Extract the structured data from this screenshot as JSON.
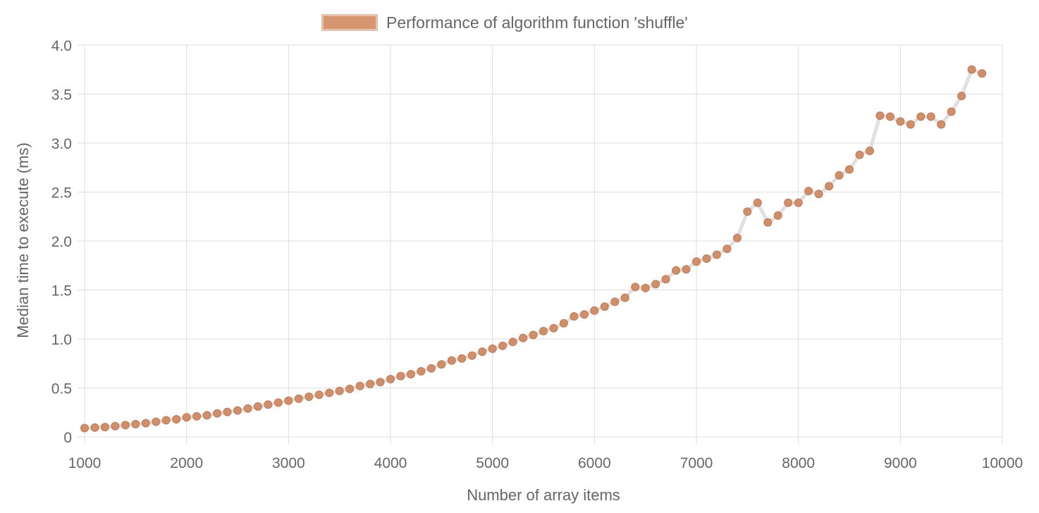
{
  "chart_data": {
    "type": "line",
    "legend": {
      "label": "Performance of algorithm function 'shuffle'",
      "position": "top"
    },
    "xlabel": "Number of array items",
    "ylabel": "Median time to execute (ms)",
    "xlim": [
      1000,
      10000
    ],
    "ylim": [
      0,
      4.0
    ],
    "x_ticks": [
      1000,
      2000,
      3000,
      4000,
      5000,
      6000,
      7000,
      8000,
      9000,
      10000
    ],
    "y_ticks": [
      "0",
      "0.5",
      "1.0",
      "1.5",
      "2.0",
      "2.5",
      "3.0",
      "3.5",
      "4.0"
    ],
    "grid": true,
    "colors": {
      "point": "#d08e6a",
      "point_border": "#c07a55",
      "line": "#e0e0e0",
      "grid": "#dddddd"
    },
    "series": [
      {
        "name": "Performance of algorithm function 'shuffle'",
        "x": [
          1000,
          1100,
          1200,
          1300,
          1400,
          1500,
          1600,
          1700,
          1800,
          1900,
          2000,
          2100,
          2200,
          2300,
          2400,
          2500,
          2600,
          2700,
          2800,
          2900,
          3000,
          3100,
          3200,
          3300,
          3400,
          3500,
          3600,
          3700,
          3800,
          3900,
          4000,
          4100,
          4200,
          4300,
          4400,
          4500,
          4600,
          4700,
          4800,
          4900,
          5000,
          5100,
          5200,
          5300,
          5400,
          5500,
          5600,
          5700,
          5800,
          5900,
          6000,
          6100,
          6200,
          6300,
          6400,
          6500,
          6600,
          6700,
          6800,
          6900,
          7000,
          7100,
          7200,
          7300,
          7400,
          7500,
          7600,
          7700,
          7800,
          7900,
          8000,
          8100,
          8200,
          8300,
          8400,
          8500,
          8600,
          8700,
          8800,
          8900,
          9000,
          9100,
          9200,
          9300,
          9400,
          9500,
          9600,
          9700,
          9800
        ],
        "values": [
          0.09,
          0.095,
          0.1,
          0.11,
          0.12,
          0.13,
          0.14,
          0.155,
          0.17,
          0.18,
          0.2,
          0.21,
          0.22,
          0.24,
          0.255,
          0.27,
          0.29,
          0.31,
          0.33,
          0.35,
          0.37,
          0.39,
          0.41,
          0.43,
          0.45,
          0.47,
          0.49,
          0.52,
          0.54,
          0.56,
          0.59,
          0.62,
          0.64,
          0.67,
          0.7,
          0.74,
          0.78,
          0.8,
          0.83,
          0.87,
          0.9,
          0.93,
          0.97,
          1.01,
          1.04,
          1.08,
          1.11,
          1.16,
          1.23,
          1.25,
          1.29,
          1.33,
          1.38,
          1.42,
          1.53,
          1.52,
          1.56,
          1.61,
          1.7,
          1.71,
          1.79,
          1.82,
          1.86,
          1.92,
          2.03,
          2.3,
          2.39,
          2.19,
          2.26,
          2.39,
          2.39,
          2.51,
          2.48,
          2.56,
          2.67,
          2.73,
          2.88,
          2.92,
          3.28,
          3.27,
          3.22,
          3.19,
          3.27,
          3.27,
          3.19,
          3.32,
          3.48,
          3.75,
          3.71
        ]
      }
    ]
  }
}
